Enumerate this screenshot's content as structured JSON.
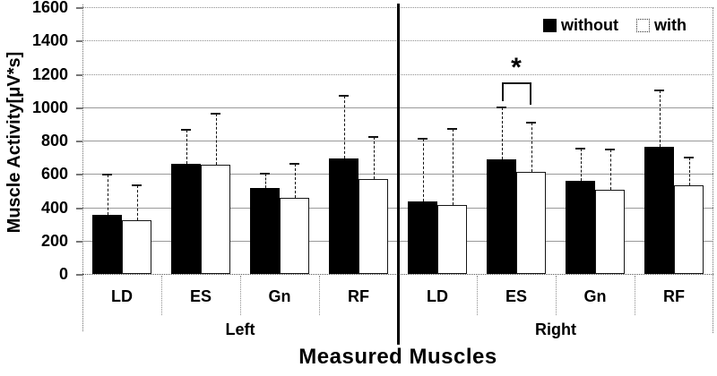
{
  "chart_data": {
    "type": "bar",
    "title": "",
    "xlabel": "Measured Muscles",
    "ylabel": "Muscle Activity[μV*s]",
    "ylim": [
      0,
      1600
    ],
    "ytick_step": 200,
    "grid": "horizontal",
    "legend_position": "top-right-inside",
    "legend": [
      {
        "name": "without",
        "fill": "#000000"
      },
      {
        "name": "with",
        "fill": "#ffffff"
      }
    ],
    "groups": [
      {
        "label": "Left",
        "categories": [
          "LD",
          "ES",
          "Gn",
          "RF"
        ],
        "series": [
          {
            "name": "without",
            "values": [
              355,
              660,
              515,
              695
            ],
            "error_top": [
              595,
              865,
              600,
              1070
            ]
          },
          {
            "name": "with",
            "values": [
              320,
              655,
              455,
              570
            ],
            "error_top": [
              530,
              960,
              660,
              820
            ]
          }
        ]
      },
      {
        "label": "Right",
        "categories": [
          "LD",
          "ES",
          "Gn",
          "RF"
        ],
        "series": [
          {
            "name": "without",
            "values": [
              435,
              685,
              560,
              760
            ],
            "error_top": [
              810,
              1000,
              750,
              1100
            ]
          },
          {
            "name": "with",
            "values": [
              415,
              610,
              505,
              530
            ],
            "error_top": [
              870,
              910,
              745,
              700
            ]
          }
        ]
      }
    ],
    "annotation": {
      "symbol": "*",
      "group": "Right",
      "category": "ES",
      "meaning": "significant difference between without and with"
    }
  }
}
